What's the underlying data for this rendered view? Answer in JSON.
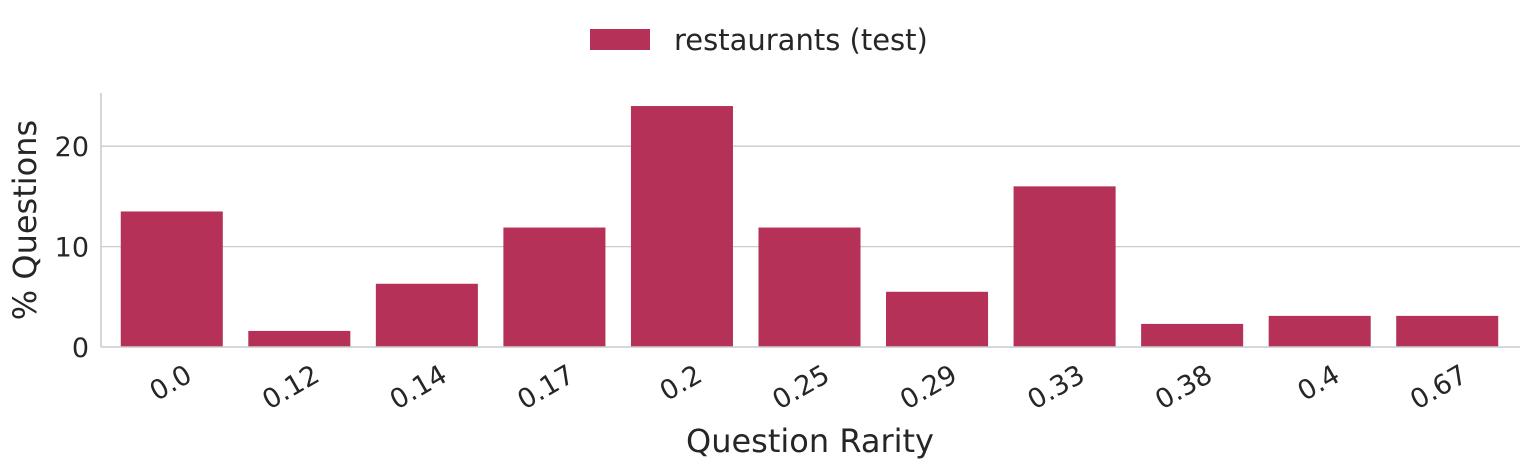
{
  "chart_data": {
    "type": "bar",
    "categories": [
      "0.0",
      "0.12",
      "0.14",
      "0.17",
      "0.2",
      "0.25",
      "0.29",
      "0.33",
      "0.38",
      "0.4",
      "0.67"
    ],
    "series": [
      {
        "name": "restaurants (test)",
        "values": [
          13.5,
          1.6,
          6.3,
          11.9,
          24.0,
          11.9,
          5.5,
          16.0,
          2.3,
          3.1,
          3.1
        ],
        "color": "#b53157"
      }
    ],
    "xlabel": "Question Rarity",
    "ylabel": "% Questions",
    "ylim": [
      0,
      25.3
    ],
    "yticks": [
      0,
      10,
      20
    ],
    "grid": "horizontal",
    "legend": "top-center"
  }
}
